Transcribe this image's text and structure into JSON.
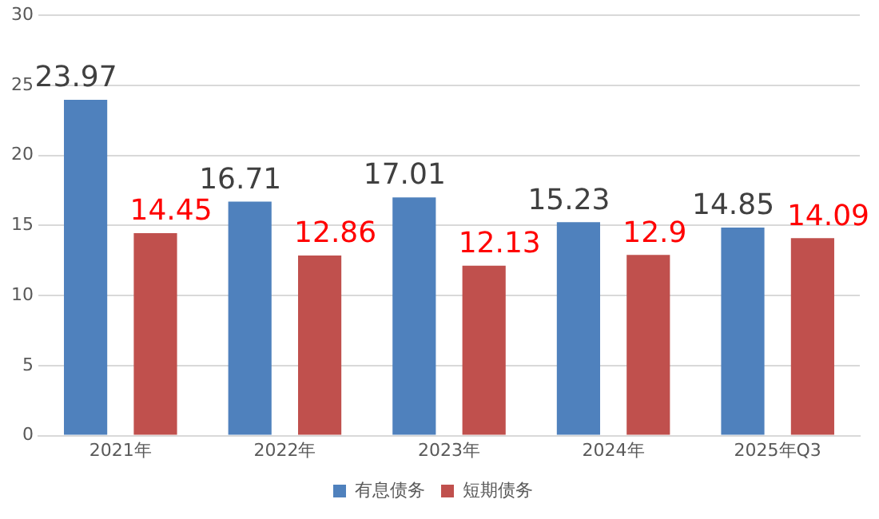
{
  "chart_data": {
    "type": "bar",
    "categories": [
      "2021年",
      "2022年",
      "2023年",
      "2024年",
      "2025年Q3"
    ],
    "series": [
      {
        "name": "有息债务",
        "color": "#4f81bd",
        "values": [
          23.97,
          16.71,
          17.01,
          15.23,
          14.85
        ]
      },
      {
        "name": "短期债务",
        "color": "#c0504d",
        "values": [
          14.45,
          12.86,
          12.13,
          12.9,
          14.09
        ]
      }
    ],
    "ylim": [
      0,
      30
    ],
    "yticks": [
      0,
      5,
      10,
      15,
      20,
      25,
      30
    ],
    "grid": "y",
    "legend": "bottom",
    "data_labels": true
  }
}
